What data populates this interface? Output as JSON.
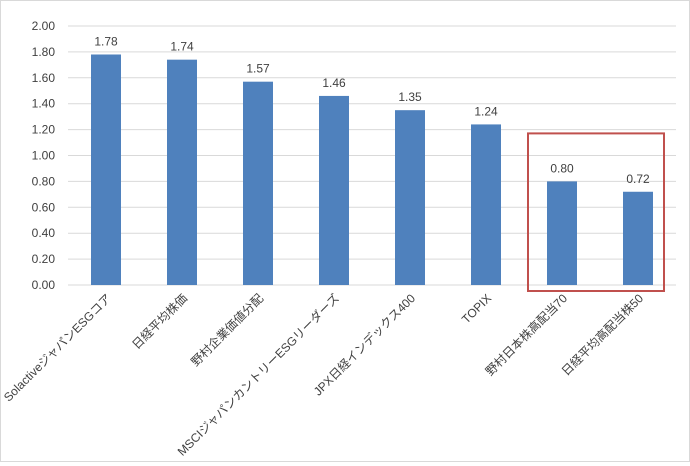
{
  "chart_data": {
    "type": "bar",
    "title": "",
    "xlabel": "",
    "ylabel": "",
    "categories": [
      "SolactiveジャパンESGコア",
      "日経平均株価",
      "野村企業価値分配",
      "MSCIジャパンカントリーESGリーダーズ",
      "JPX日経インデックス400",
      "TOPIX",
      "野村日本株高配当70",
      "日経平均高配当株50"
    ],
    "series": [
      {
        "values": [
          1.78,
          1.74,
          1.57,
          1.46,
          1.35,
          1.24,
          0.8,
          0.72
        ]
      }
    ],
    "data_labels": [
      "1.78",
      "1.74",
      "1.57",
      "1.46",
      "1.35",
      "1.24",
      "0.80",
      "0.72"
    ],
    "ylim": [
      0,
      2.0
    ],
    "y_ticks": [
      "0.00",
      "0.20",
      "0.40",
      "0.60",
      "0.80",
      "1.00",
      "1.20",
      "1.40",
      "1.60",
      "1.80",
      "2.00"
    ],
    "grid": true,
    "legend": "none",
    "highlight": {
      "categories": [
        "野村日本株高配当70",
        "日経平均高配当株50"
      ],
      "color": "#c0504d"
    },
    "colors": {
      "bar": "#4f81bd",
      "grid": "#d9d9d9",
      "axis_text": "#404040",
      "label_text": "#404040"
    }
  }
}
